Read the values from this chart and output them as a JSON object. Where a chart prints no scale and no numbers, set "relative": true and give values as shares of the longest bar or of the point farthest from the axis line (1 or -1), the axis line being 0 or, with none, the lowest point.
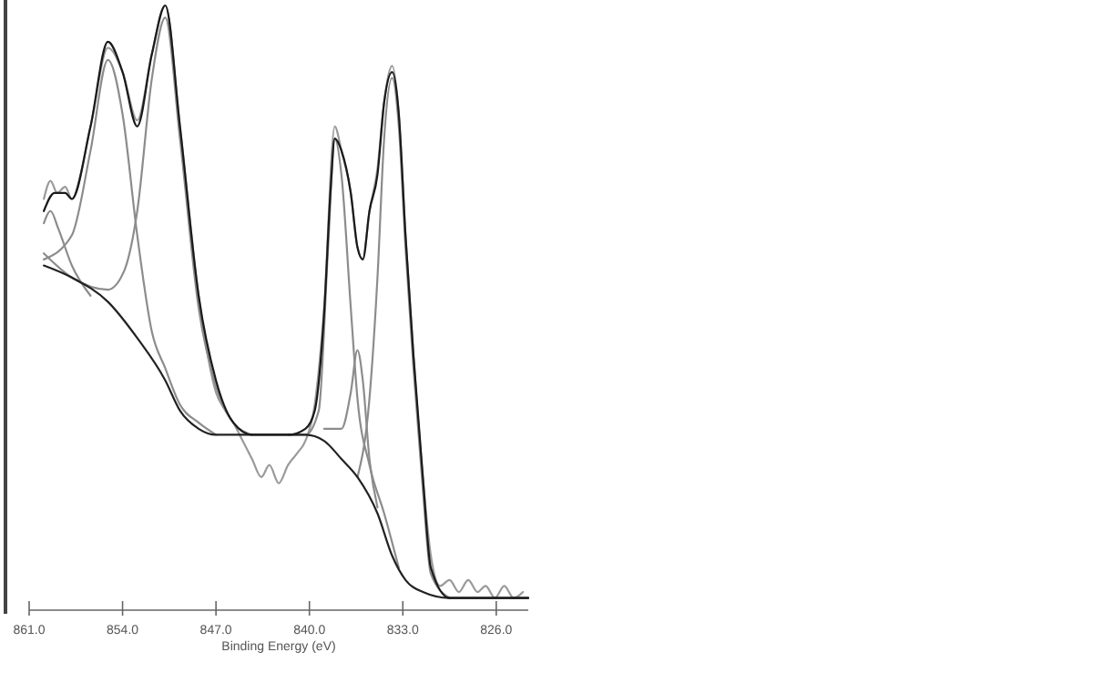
{
  "chart_data": {
    "type": "line",
    "xlabel": "Binding Energy (eV)",
    "relative": true,
    "tick_labels": "x",
    "grid": false,
    "line_style": "solid",
    "xlim": [
      861,
      823.6
    ],
    "xticks": [
      {
        "value": 861,
        "label": "861.0"
      },
      {
        "value": 854,
        "label": "854.0"
      },
      {
        "value": 847,
        "label": "847.0"
      },
      {
        "value": 840,
        "label": "840.0"
      },
      {
        "value": 833,
        "label": "833.0"
      },
      {
        "value": 826,
        "label": "826.0"
      }
    ],
    "series": [
      {
        "color": "#9a9a9a",
        "x": [
          859.9,
          859.4,
          858.9,
          858.3,
          857.8,
          856.4,
          855.1,
          854.0,
          852.9,
          851.8,
          850.8,
          849.7,
          848.3,
          847.0,
          846.3,
          845.7,
          845.0,
          844.3,
          843.6,
          843.0,
          842.3,
          841.6,
          840.9,
          840.3,
          839.6,
          838.9,
          838.1,
          837.6,
          836.9,
          836.4,
          836.0,
          835.5,
          834.9,
          834.4,
          833.8,
          833.3,
          832.8,
          832.2,
          831.5,
          830.9,
          830.2,
          829.5,
          828.8,
          828.1,
          827.4,
          826.8,
          826.1,
          825.4,
          824.7,
          824.0
        ],
        "values": [
          0.68,
          0.71,
          0.69,
          0.7,
          0.68,
          0.8,
          0.93,
          0.89,
          0.81,
          0.92,
          1.0,
          0.8,
          0.52,
          0.36,
          0.33,
          0.31,
          0.28,
          0.25,
          0.22,
          0.24,
          0.21,
          0.24,
          0.26,
          0.28,
          0.34,
          0.5,
          0.8,
          0.76,
          0.69,
          0.6,
          0.58,
          0.66,
          0.73,
          0.84,
          0.9,
          0.82,
          0.62,
          0.42,
          0.22,
          0.09,
          0.04,
          0.05,
          0.03,
          0.05,
          0.03,
          0.04,
          0.02,
          0.04,
          0.02,
          0.03
        ]
      },
      {
        "color": "#8c8c8c",
        "x": [
          859.9,
          859.4,
          858.8,
          857.8,
          856.4
        ],
        "values": [
          0.64,
          0.66,
          0.63,
          0.57,
          0.52
        ]
      },
      {
        "color": "#8c8c8c",
        "x": [
          859.9,
          857.8,
          856.4,
          855.1,
          854.0,
          852.9,
          851.8,
          850.8,
          849.7,
          848.3,
          847.0
        ],
        "values": [
          0.58,
          0.62,
          0.76,
          0.91,
          0.82,
          0.62,
          0.46,
          0.4,
          0.34,
          0.31,
          0.29
        ]
      },
      {
        "color": "#8c8c8c",
        "x": [
          859.9,
          857.8,
          855.1,
          853.9,
          852.9,
          851.8,
          850.8,
          849.7,
          848.3,
          847.0,
          845.7,
          844.3
        ],
        "values": [
          0.59,
          0.55,
          0.53,
          0.56,
          0.66,
          0.88,
          0.98,
          0.78,
          0.5,
          0.37,
          0.31,
          0.29
        ]
      },
      {
        "color": "#8c8c8c",
        "x": [
          841.6,
          840.3,
          839.3,
          838.6,
          838.1,
          837.6,
          836.9,
          836.4,
          835.5,
          834.4,
          833.3
        ],
        "values": [
          0.29,
          0.29,
          0.33,
          0.6,
          0.78,
          0.72,
          0.5,
          0.35,
          0.24,
          0.16,
          0.07
        ]
      },
      {
        "color": "#8c8c8c",
        "x": [
          838.9,
          837.6,
          836.9,
          836.4,
          836.0,
          835.5,
          834.9
        ],
        "values": [
          0.3,
          0.3,
          0.36,
          0.43,
          0.38,
          0.25,
          0.17
        ]
      },
      {
        "color": "#8c8c8c",
        "x": [
          836.4,
          835.5,
          834.9,
          834.4,
          833.8,
          833.3,
          832.8,
          832.2,
          831.5,
          830.9,
          829.5
        ],
        "values": [
          0.22,
          0.35,
          0.55,
          0.78,
          0.88,
          0.8,
          0.6,
          0.4,
          0.2,
          0.06,
          0.02
        ]
      },
      {
        "color": "#222222",
        "x": [
          859.9,
          857.8,
          855.1,
          852.9,
          850.8,
          849.7,
          848.3,
          847.0,
          843.0,
          840.3,
          838.9,
          837.6,
          836.4,
          834.9,
          833.8,
          832.8,
          831.5,
          829.5,
          823.6
        ],
        "values": [
          0.57,
          0.55,
          0.51,
          0.45,
          0.38,
          0.33,
          0.3,
          0.29,
          0.29,
          0.29,
          0.28,
          0.25,
          0.22,
          0.16,
          0.09,
          0.05,
          0.03,
          0.02,
          0.02
        ]
      },
      {
        "color": "#1a1a1a",
        "x": [
          859.9,
          859.1,
          858.3,
          857.8,
          856.4,
          855.1,
          854.0,
          852.9,
          851.8,
          850.8,
          849.7,
          848.3,
          847.0,
          845.7,
          844.3,
          843.0,
          841.6,
          840.3,
          839.6,
          838.9,
          838.4,
          838.1,
          837.6,
          836.9,
          836.4,
          836.0,
          835.5,
          834.9,
          834.4,
          833.8,
          833.3,
          832.8,
          832.2,
          831.5,
          830.9,
          829.5,
          826.8,
          823.6
        ],
        "values": [
          0.66,
          0.69,
          0.69,
          0.68,
          0.8,
          0.94,
          0.89,
          0.8,
          0.92,
          1.0,
          0.8,
          0.52,
          0.38,
          0.31,
          0.29,
          0.29,
          0.29,
          0.3,
          0.33,
          0.49,
          0.7,
          0.78,
          0.76,
          0.69,
          0.6,
          0.58,
          0.66,
          0.72,
          0.84,
          0.89,
          0.82,
          0.62,
          0.42,
          0.22,
          0.07,
          0.02,
          0.02,
          0.02
        ]
      }
    ]
  }
}
